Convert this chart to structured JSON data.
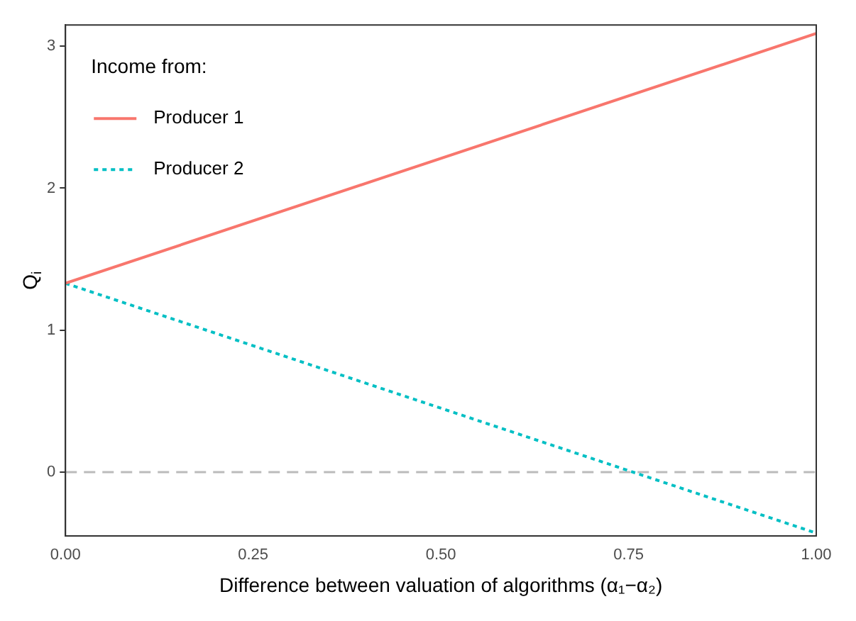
{
  "chart_data": {
    "type": "line",
    "xlabel": "Difference between valuation of algorithms (α₁−α₂)",
    "ylabel": "Q$_{i}$",
    "legend_title": "Income from:",
    "legend": "top left",
    "x": [
      0,
      1
    ],
    "series": [
      {
        "name": "Producer 1",
        "color": "#f8766d",
        "values": [
          1.33,
          3.09
        ],
        "line_style": "solid"
      },
      {
        "name": "Producer 2",
        "color": "#00bfc4",
        "values": [
          1.33,
          -0.43
        ],
        "line_style": "dotted"
      }
    ],
    "xlim": [
      0,
      1
    ],
    "xticks": [
      {
        "value": 0,
        "label": "0.00"
      },
      {
        "value": 0.25,
        "label": "0.25"
      },
      {
        "value": 0.5,
        "label": "0.50"
      },
      {
        "value": 0.75,
        "label": "0.75"
      },
      {
        "value": 1,
        "label": "1.00"
      }
    ],
    "ylim": [
      -0.45,
      3.15
    ],
    "yticks": [
      0,
      1,
      2,
      3
    ],
    "grid": false,
    "ref_lines": [
      {
        "axis": "y",
        "value": 0,
        "color": "#bbbbbb",
        "line_style": "dashed"
      }
    ]
  }
}
